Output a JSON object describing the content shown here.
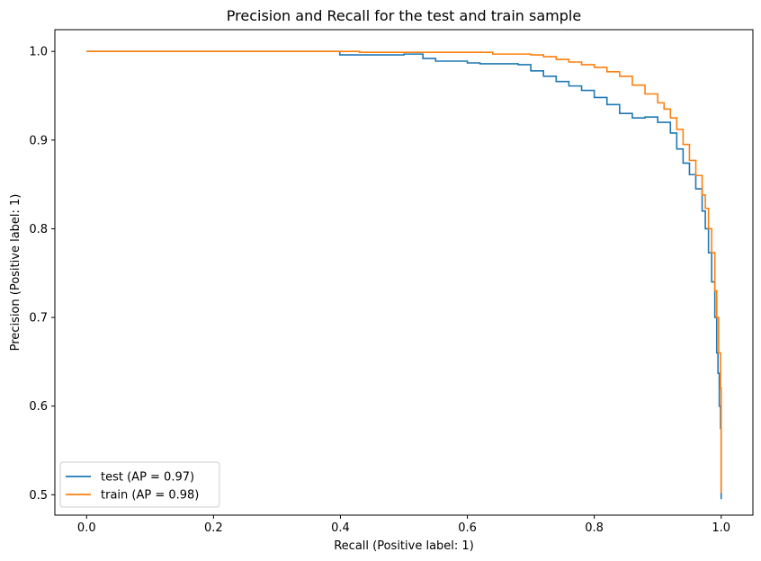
{
  "chart_data": {
    "type": "line",
    "title": "Precision and Recall for the test and train sample",
    "xlabel": "Recall (Positive label: 1)",
    "ylabel": "Precision (Positive label: 1)",
    "xlim": [
      -0.05,
      1.05
    ],
    "ylim": [
      0.477,
      1.0245
    ],
    "xticks": [
      0.0,
      0.2,
      0.4,
      0.6,
      0.8,
      1.0
    ],
    "xtick_labels": [
      "0.0",
      "0.2",
      "0.4",
      "0.6",
      "0.8",
      "1.0"
    ],
    "yticks": [
      0.5,
      0.6,
      0.7,
      0.8,
      0.9,
      1.0
    ],
    "ytick_labels": [
      "0.5",
      "0.6",
      "0.7",
      "0.8",
      "0.9",
      "1.0"
    ],
    "grid": false,
    "legend_position": "lower-left",
    "series": [
      {
        "name": "test (AP = 0.97)",
        "color": "#1f77b4",
        "x": [
          0.0,
          0.3,
          0.399,
          0.399,
          0.45,
          0.5,
          0.524,
          0.53,
          0.55,
          0.6,
          0.62,
          0.65,
          0.68,
          0.7,
          0.72,
          0.74,
          0.76,
          0.78,
          0.8,
          0.82,
          0.84,
          0.86,
          0.88,
          0.9,
          0.92,
          0.93,
          0.94,
          0.95,
          0.96,
          0.97,
          0.975,
          0.98,
          0.985,
          0.99,
          0.993,
          0.995,
          0.997,
          0.999,
          1.0
        ],
        "y": [
          1.0,
          1.0,
          1.0,
          0.996,
          0.996,
          0.997,
          0.997,
          0.992,
          0.989,
          0.987,
          0.986,
          0.986,
          0.985,
          0.978,
          0.972,
          0.966,
          0.961,
          0.956,
          0.948,
          0.94,
          0.93,
          0.925,
          0.926,
          0.92,
          0.908,
          0.89,
          0.874,
          0.861,
          0.845,
          0.82,
          0.8,
          0.773,
          0.74,
          0.7,
          0.66,
          0.637,
          0.6,
          0.575,
          0.495
        ]
      },
      {
        "name": "train (AP = 0.98)",
        "color": "#ff7f0e",
        "x": [
          0.0,
          0.2,
          0.4,
          0.43,
          0.43,
          0.6,
          0.635,
          0.64,
          0.7,
          0.72,
          0.74,
          0.76,
          0.78,
          0.8,
          0.82,
          0.84,
          0.86,
          0.88,
          0.9,
          0.91,
          0.92,
          0.93,
          0.94,
          0.95,
          0.96,
          0.97,
          0.975,
          0.98,
          0.985,
          0.99,
          0.993,
          0.996,
          0.999,
          1.0,
          1.0
        ],
        "y": [
          1.0,
          1.0,
          1.0,
          1.0,
          0.999,
          0.999,
          0.999,
          0.997,
          0.996,
          0.994,
          0.991,
          0.988,
          0.985,
          0.982,
          0.977,
          0.972,
          0.962,
          0.952,
          0.942,
          0.935,
          0.925,
          0.912,
          0.895,
          0.877,
          0.86,
          0.838,
          0.823,
          0.8,
          0.773,
          0.73,
          0.7,
          0.66,
          0.62,
          0.56,
          0.502
        ]
      }
    ]
  }
}
